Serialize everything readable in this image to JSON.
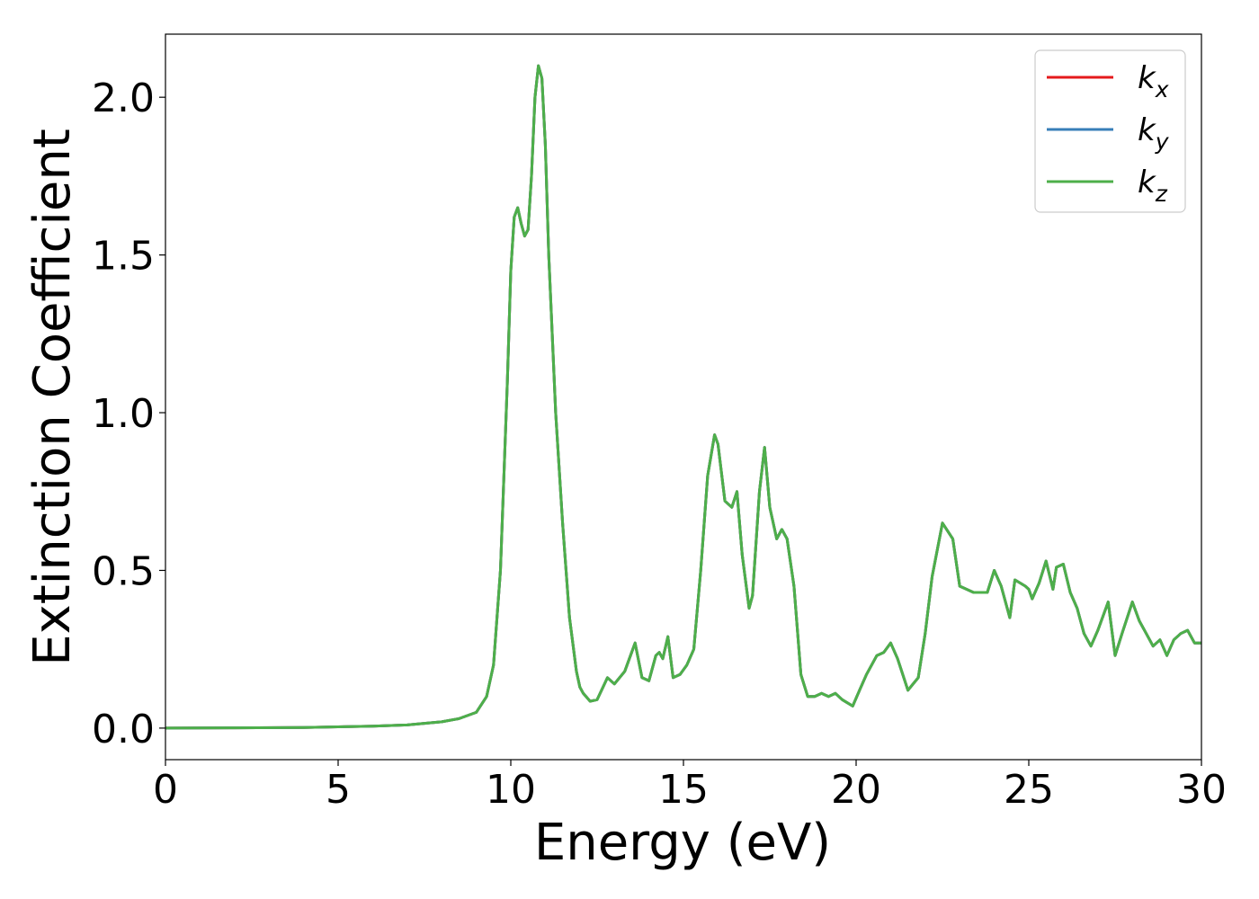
{
  "chart_data": {
    "type": "line",
    "title": "",
    "xlabel": "Energy (eV)",
    "ylabel": "Extinction Coefficient",
    "xlim": [
      0,
      30
    ],
    "ylim": [
      -0.1,
      2.2
    ],
    "xticks": [
      0,
      5,
      10,
      15,
      20,
      25,
      30
    ],
    "xtick_labels": [
      "0",
      "5",
      "10",
      "15",
      "20",
      "25",
      "30"
    ],
    "yticks": [
      0.0,
      0.5,
      1.0,
      1.5,
      2.0
    ],
    "ytick_labels": [
      "0.0",
      "0.5",
      "1.0",
      "1.5",
      "2.0"
    ],
    "grid": false,
    "legend_position": "top-right",
    "x": [
      0,
      2,
      4,
      6,
      7,
      8,
      8.5,
      9,
      9.3,
      9.5,
      9.7,
      9.9,
      10.0,
      10.1,
      10.2,
      10.3,
      10.4,
      10.5,
      10.6,
      10.7,
      10.8,
      10.9,
      11.0,
      11.1,
      11.3,
      11.5,
      11.7,
      11.9,
      12.0,
      12.1,
      12.3,
      12.5,
      12.8,
      13.0,
      13.3,
      13.5,
      13.6,
      13.8,
      14.0,
      14.2,
      14.3,
      14.4,
      14.55,
      14.7,
      14.9,
      15.1,
      15.3,
      15.5,
      15.7,
      15.9,
      16.0,
      16.2,
      16.4,
      16.55,
      16.7,
      16.9,
      17.0,
      17.2,
      17.35,
      17.5,
      17.7,
      17.85,
      18.0,
      18.2,
      18.4,
      18.6,
      18.8,
      19.0,
      19.2,
      19.4,
      19.6,
      19.9,
      20.1,
      20.3,
      20.6,
      20.8,
      21.0,
      21.2,
      21.5,
      21.8,
      22.0,
      22.2,
      22.5,
      22.8,
      23.0,
      23.2,
      23.4,
      23.6,
      23.8,
      24.0,
      24.2,
      24.45,
      24.6,
      24.75,
      24.9,
      25.0,
      25.1,
      25.3,
      25.5,
      25.7,
      25.8,
      26.0,
      26.2,
      26.4,
      26.6,
      26.8,
      27.0,
      27.3,
      27.5,
      27.7,
      28.0,
      28.2,
      28.4,
      28.6,
      28.8,
      29.0,
      29.2,
      29.4,
      29.6,
      29.8,
      30.0
    ],
    "series": [
      {
        "name": "k_x",
        "color": "#e41a1c",
        "values": [
          0.0,
          0.001,
          0.002,
          0.006,
          0.01,
          0.02,
          0.03,
          0.05,
          0.1,
          0.2,
          0.5,
          1.1,
          1.45,
          1.62,
          1.65,
          1.6,
          1.56,
          1.58,
          1.75,
          2.0,
          2.1,
          2.06,
          1.85,
          1.5,
          1.0,
          0.65,
          0.35,
          0.18,
          0.13,
          0.11,
          0.085,
          0.09,
          0.16,
          0.14,
          0.18,
          0.24,
          0.27,
          0.16,
          0.15,
          0.23,
          0.24,
          0.22,
          0.29,
          0.16,
          0.17,
          0.2,
          0.25,
          0.5,
          0.8,
          0.93,
          0.9,
          0.72,
          0.7,
          0.75,
          0.55,
          0.38,
          0.42,
          0.75,
          0.89,
          0.7,
          0.6,
          0.63,
          0.6,
          0.45,
          0.17,
          0.1,
          0.1,
          0.11,
          0.1,
          0.11,
          0.09,
          0.07,
          0.12,
          0.17,
          0.23,
          0.24,
          0.27,
          0.22,
          0.12,
          0.16,
          0.3,
          0.48,
          0.65,
          0.6,
          0.45,
          0.44,
          0.43,
          0.43,
          0.43,
          0.5,
          0.45,
          0.35,
          0.47,
          0.46,
          0.45,
          0.44,
          0.41,
          0.46,
          0.53,
          0.44,
          0.51,
          0.52,
          0.43,
          0.38,
          0.3,
          0.26,
          0.31,
          0.4,
          0.23,
          0.3,
          0.4,
          0.34,
          0.3,
          0.26,
          0.28,
          0.23,
          0.28,
          0.3,
          0.31,
          0.27,
          0.27
        ]
      },
      {
        "name": "k_y",
        "color": "#377eb8",
        "values": [
          0.0,
          0.001,
          0.002,
          0.006,
          0.01,
          0.02,
          0.03,
          0.05,
          0.1,
          0.2,
          0.5,
          1.1,
          1.45,
          1.62,
          1.65,
          1.6,
          1.56,
          1.58,
          1.75,
          2.0,
          2.1,
          2.06,
          1.85,
          1.5,
          1.0,
          0.65,
          0.35,
          0.18,
          0.13,
          0.11,
          0.085,
          0.09,
          0.16,
          0.14,
          0.18,
          0.24,
          0.27,
          0.16,
          0.15,
          0.23,
          0.24,
          0.22,
          0.29,
          0.16,
          0.17,
          0.2,
          0.25,
          0.5,
          0.8,
          0.93,
          0.9,
          0.72,
          0.7,
          0.75,
          0.55,
          0.38,
          0.42,
          0.75,
          0.89,
          0.7,
          0.6,
          0.63,
          0.6,
          0.45,
          0.17,
          0.1,
          0.1,
          0.11,
          0.1,
          0.11,
          0.09,
          0.07,
          0.12,
          0.17,
          0.23,
          0.24,
          0.27,
          0.22,
          0.12,
          0.16,
          0.3,
          0.48,
          0.65,
          0.6,
          0.45,
          0.44,
          0.43,
          0.43,
          0.43,
          0.5,
          0.45,
          0.35,
          0.47,
          0.46,
          0.45,
          0.44,
          0.41,
          0.46,
          0.53,
          0.44,
          0.51,
          0.52,
          0.43,
          0.38,
          0.3,
          0.26,
          0.31,
          0.4,
          0.23,
          0.3,
          0.4,
          0.34,
          0.3,
          0.26,
          0.28,
          0.23,
          0.28,
          0.3,
          0.31,
          0.27,
          0.27
        ]
      },
      {
        "name": "k_z",
        "color": "#4daf4a",
        "values": [
          0.0,
          0.001,
          0.002,
          0.006,
          0.01,
          0.02,
          0.03,
          0.05,
          0.1,
          0.2,
          0.5,
          1.1,
          1.45,
          1.62,
          1.65,
          1.6,
          1.56,
          1.58,
          1.75,
          2.0,
          2.1,
          2.06,
          1.85,
          1.5,
          1.0,
          0.65,
          0.35,
          0.18,
          0.13,
          0.11,
          0.085,
          0.09,
          0.16,
          0.14,
          0.18,
          0.24,
          0.27,
          0.16,
          0.15,
          0.23,
          0.24,
          0.22,
          0.29,
          0.16,
          0.17,
          0.2,
          0.25,
          0.5,
          0.8,
          0.93,
          0.9,
          0.72,
          0.7,
          0.75,
          0.55,
          0.38,
          0.42,
          0.75,
          0.89,
          0.7,
          0.6,
          0.63,
          0.6,
          0.45,
          0.17,
          0.1,
          0.1,
          0.11,
          0.1,
          0.11,
          0.09,
          0.07,
          0.12,
          0.17,
          0.23,
          0.24,
          0.27,
          0.22,
          0.12,
          0.16,
          0.3,
          0.48,
          0.65,
          0.6,
          0.45,
          0.44,
          0.43,
          0.43,
          0.43,
          0.5,
          0.45,
          0.35,
          0.47,
          0.46,
          0.45,
          0.44,
          0.41,
          0.46,
          0.53,
          0.44,
          0.51,
          0.52,
          0.43,
          0.38,
          0.3,
          0.26,
          0.31,
          0.4,
          0.23,
          0.3,
          0.4,
          0.34,
          0.3,
          0.26,
          0.28,
          0.23,
          0.28,
          0.3,
          0.31,
          0.27,
          0.27
        ]
      }
    ],
    "legend": [
      {
        "base": "k",
        "sub": "x",
        "color": "#e41a1c"
      },
      {
        "base": "k",
        "sub": "y",
        "color": "#377eb8"
      },
      {
        "base": "k",
        "sub": "z",
        "color": "#4daf4a"
      }
    ]
  }
}
